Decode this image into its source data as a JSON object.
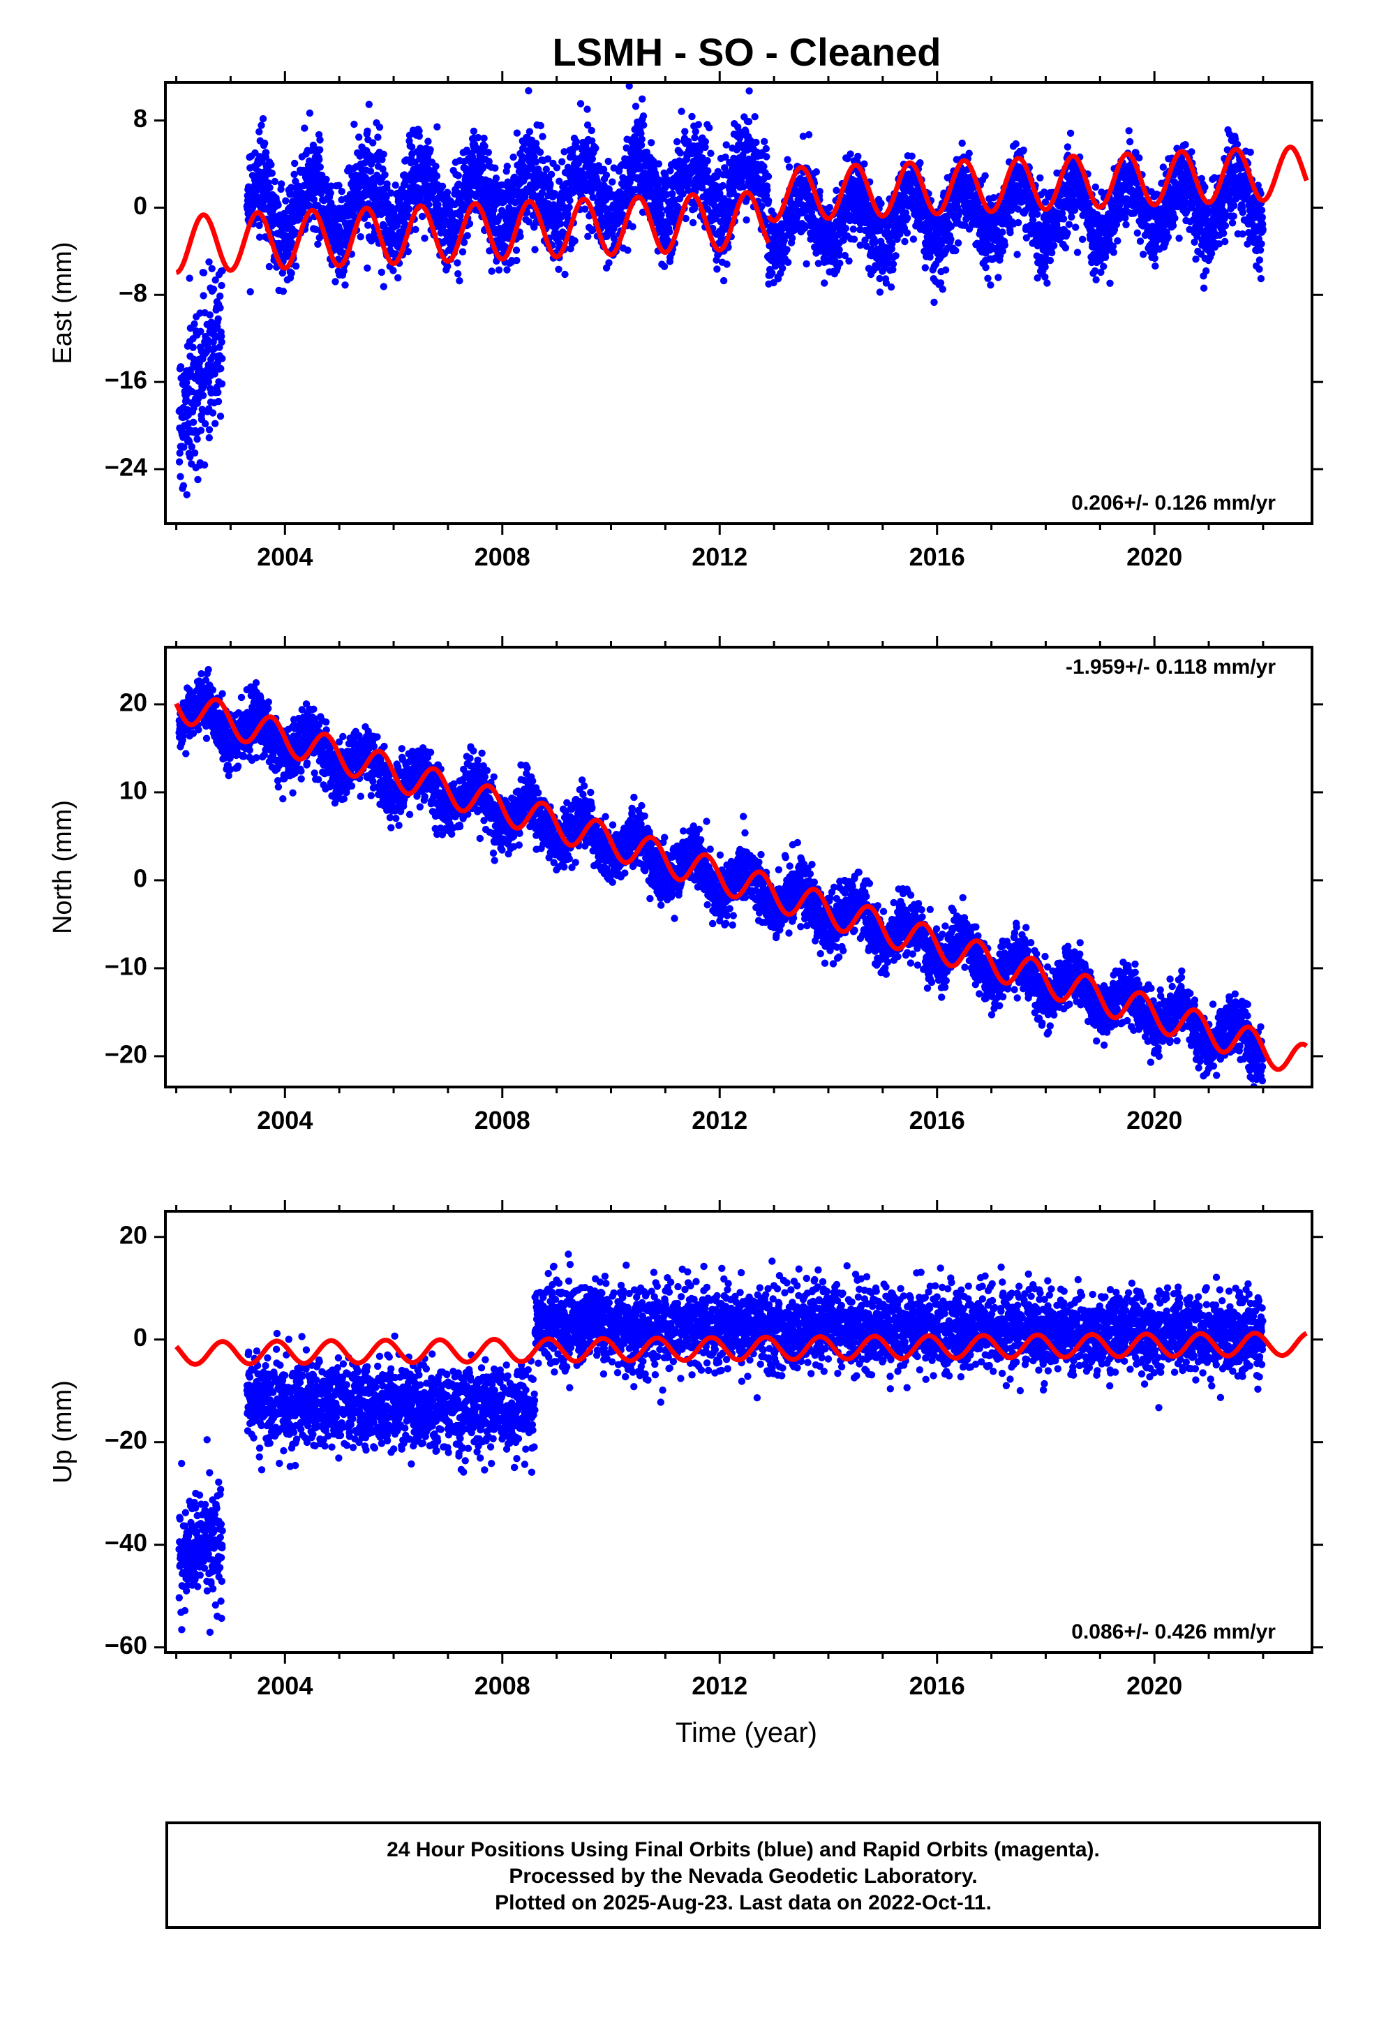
{
  "title": "LSMH  - SO - Cleaned",
  "x_axis_title": "Time (year)",
  "footer": {
    "line1": "24 Hour Positions Using Final Orbits (blue) and Rapid Orbits (magenta).",
    "line2": "Processed by the Nevada Geodetic Laboratory.",
    "line3": "Plotted on 2025-Aug-23. Last data on 2022-Oct-11."
  },
  "colors": {
    "points": "#0000ff",
    "model": "#ff0000",
    "frame": "#000000"
  },
  "chart_data": [
    {
      "type": "scatter",
      "name": "east",
      "ylabel": "East (mm)",
      "xlim": [
        2001.8,
        2022.9
      ],
      "ylim": [
        -29,
        11.5
      ],
      "yticks": [
        -24,
        -16,
        -8,
        0,
        8
      ],
      "ytick_labels": [
        "−24",
        "−16",
        "−8",
        "0",
        "8"
      ],
      "xticks": [
        2004,
        2008,
        2012,
        2016,
        2020
      ],
      "xtick_labels": [
        "2004",
        "2008",
        "2012",
        "2016",
        "2020"
      ],
      "rate_label": "0.206+/- 0.126 mm/yr",
      "rate_position": "bottom-right",
      "model": {
        "segments": [
          {
            "t_start": 2002.0,
            "t_end": 2012.9,
            "offset": -1.3,
            "trend": 0.206,
            "amplitude": 2.6,
            "phase_year": 0.25
          },
          {
            "t_start": 2012.9,
            "t_end": 2022.8,
            "offset": 1.0,
            "trend": 0.206,
            "amplitude": 2.4,
            "phase_year": 0.25
          }
        ],
        "t0": 2012.0
      },
      "observations": [
        {
          "t_start": 2002.05,
          "t_end": 2002.85,
          "center_start": -20,
          "center_end": -11,
          "scatter": 3.8
        },
        {
          "t_start": 2003.3,
          "t_end": 2012.9,
          "center_start": -0.2,
          "center_end": 2.2,
          "scatter": 2.2,
          "seasonal": 2.6
        },
        {
          "t_start": 2012.9,
          "t_end": 2022.0,
          "center_start": -1.5,
          "center_end": 0.5,
          "scatter": 1.8,
          "seasonal": 2.4
        }
      ],
      "point_count": 5400
    },
    {
      "type": "scatter",
      "name": "north",
      "ylabel": "North (mm)",
      "xlim": [
        2001.8,
        2022.9
      ],
      "ylim": [
        -23.5,
        26.5
      ],
      "yticks": [
        -20,
        -10,
        0,
        10,
        20
      ],
      "ytick_labels": [
        "−20",
        "−10",
        "0",
        "10",
        "20"
      ],
      "xticks": [
        2004,
        2008,
        2012,
        2016,
        2020
      ],
      "xtick_labels": [
        "2004",
        "2008",
        "2012",
        "2016",
        "2020"
      ],
      "rate_label": "-1.959+/- 0.118 mm/yr",
      "rate_position": "top-right",
      "model": {
        "segments": [
          {
            "t_start": 2002.0,
            "t_end": 2022.8,
            "offset": 0.5,
            "trend": -1.959,
            "amplitude": 1.9,
            "phase_year": 0.5
          }
        ],
        "t0": 2012.0
      },
      "observations": [
        {
          "t_start": 2002.05,
          "t_end": 2022.0,
          "center_start": 19.5,
          "center_end": -19.0,
          "scatter": 1.6,
          "seasonal": 1.9
        }
      ],
      "point_count": 5400
    },
    {
      "type": "scatter",
      "name": "up",
      "ylabel": "Up (mm)",
      "xlim": [
        2001.8,
        2022.9
      ],
      "ylim": [
        -61,
        25
      ],
      "yticks": [
        -60,
        -40,
        -20,
        0,
        20
      ],
      "ytick_labels": [
        "−60",
        "−40",
        "−20",
        "0",
        "20"
      ],
      "xticks": [
        2004,
        2008,
        2012,
        2016,
        2020
      ],
      "xtick_labels": [
        "2004",
        "2008",
        "2012",
        "2016",
        "2020"
      ],
      "rate_label": "0.086+/- 0.426 mm/yr",
      "rate_position": "bottom-right",
      "model": {
        "segments": [
          {
            "t_start": 2002.0,
            "t_end": 2022.8,
            "offset": -1.8,
            "trend": 0.086,
            "amplitude": 2.2,
            "phase_year": 0.6
          }
        ],
        "t0": 2012.0
      },
      "observations": [
        {
          "t_start": 2002.05,
          "t_end": 2002.85,
          "center_start": -42,
          "center_end": -40,
          "scatter": 5.5
        },
        {
          "t_start": 2003.3,
          "t_end": 2008.6,
          "center_start": -12,
          "center_end": -14,
          "scatter": 4.2
        },
        {
          "t_start": 2008.6,
          "t_end": 2022.0,
          "center_start": 3,
          "center_end": 1,
          "scatter": 4.0
        }
      ],
      "point_count": 5400
    }
  ]
}
